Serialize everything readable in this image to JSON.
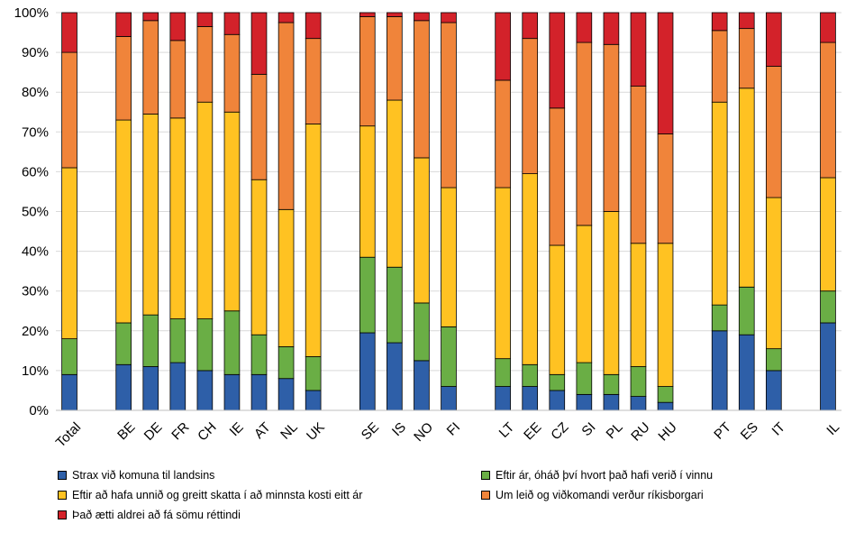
{
  "chart_data": {
    "type": "bar",
    "stacked": true,
    "categories": [
      "Total",
      "BE",
      "DE",
      "FR",
      "CH",
      "IE",
      "AT",
      "NL",
      "UK",
      "SE",
      "IS",
      "NO",
      "FI",
      "LT",
      "EE",
      "CZ",
      "SI",
      "PL",
      "RU",
      "HU",
      "PT",
      "ES",
      "IT",
      "IL"
    ],
    "groups": [
      [
        "Total"
      ],
      [
        "BE",
        "DE",
        "FR",
        "CH",
        "IE",
        "AT",
        "NL",
        "UK"
      ],
      [
        "SE",
        "IS",
        "NO",
        "FI"
      ],
      [
        "LT",
        "EE",
        "CZ",
        "SI",
        "PL",
        "RU",
        "HU"
      ],
      [
        "PT",
        "ES",
        "IT"
      ],
      [
        "IL"
      ]
    ],
    "ylim": [
      0,
      100
    ],
    "yticks": [
      "0%",
      "10%",
      "20%",
      "30%",
      "40%",
      "50%",
      "60%",
      "70%",
      "80%",
      "90%",
      "100%"
    ],
    "grid": true,
    "legend_position": "bottom",
    "series": [
      {
        "name": "Strax við komuna til landsins",
        "color": "#2e5fa8",
        "values": [
          9,
          11.5,
          11,
          12,
          10,
          9,
          9,
          8,
          5,
          19.5,
          17,
          12.5,
          6,
          6,
          6,
          5,
          4,
          4,
          3.5,
          2,
          20,
          19,
          10,
          22
        ]
      },
      {
        "name": "Eftir ár, óháð því hvort það hafi verið í vinnu",
        "color": "#6aae45",
        "values": [
          9,
          10.5,
          13,
          11,
          13,
          16,
          10,
          8,
          8.5,
          19,
          19,
          14.5,
          15,
          7,
          5.5,
          4,
          8,
          5,
          7.5,
          4,
          6.5,
          12,
          5.5,
          8
        ]
      },
      {
        "name": "Eftir að hafa unnið og greitt skatta í að minnsta kosti eitt ár",
        "color": "#ffc222",
        "values": [
          43,
          51,
          50.5,
          50.5,
          54.5,
          50,
          39,
          34.5,
          58.5,
          33,
          42,
          36.5,
          35,
          43,
          48,
          32.5,
          34.5,
          41,
          31,
          36,
          51,
          50,
          38,
          28.5
        ]
      },
      {
        "name": "Um leið og viðkomandi verður ríkisborgari",
        "color": "#f0843a",
        "values": [
          29,
          21,
          23.5,
          19.5,
          19,
          19.5,
          26.5,
          47,
          21.5,
          27.5,
          21,
          34.5,
          41.5,
          27,
          34,
          34.5,
          46,
          42,
          39.5,
          27.5,
          18,
          15,
          33,
          34
        ]
      },
      {
        "name": "Það ætti aldrei að fá sömu réttindi",
        "color": "#d3222a",
        "values": [
          10,
          6,
          2,
          7,
          3.5,
          5.5,
          15.5,
          2.5,
          6.5,
          1,
          1,
          2,
          2.5,
          17,
          6.5,
          24,
          7.5,
          8,
          18.5,
          30.5,
          4.5,
          4,
          13.5,
          7.5
        ]
      }
    ]
  }
}
